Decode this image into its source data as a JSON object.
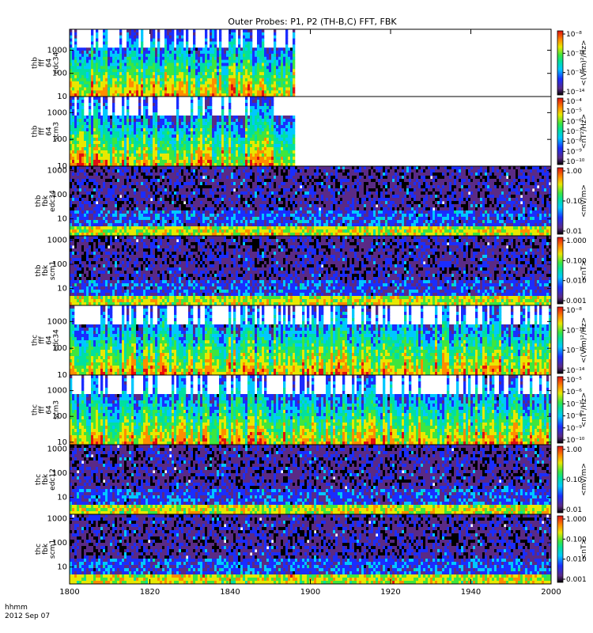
{
  "chart_data": {
    "type": "heatmap",
    "title": "Outer Probes: P1, P2 (TH-B,C) FFT, FBK",
    "xlabel": "hhmm",
    "date_label": "2012 Sep 07",
    "x_ticks": [
      "1800",
      "1820",
      "1840",
      "1900",
      "1920",
      "1940",
      "2000"
    ],
    "x_range": [
      "18:00",
      "20:00"
    ],
    "y_scale": "log",
    "colormap": [
      "#000000",
      "#5a2a86",
      "#1a2dff",
      "#00c8ff",
      "#00e0a0",
      "#3ee63e",
      "#e8e800",
      "#ff8c00",
      "#e01010",
      "#ff0000"
    ],
    "panels": [
      {
        "id": "thb-fff-e34",
        "ylabel_lines": [
          "thb",
          "fff",
          "64",
          "edc34"
        ],
        "y_ticks": [
          "10",
          "100",
          "1000"
        ],
        "y_range": [
          10,
          8000
        ],
        "cbar_label": "<(V/m)²/Hz>",
        "cbar_ticks": [
          "10⁻⁸",
          "10⁻¹⁰",
          "10⁻¹²",
          "10⁻¹⁴"
        ],
        "data_until": "18:56"
      },
      {
        "id": "thb-fff-scm3",
        "ylabel_lines": [
          "thb",
          "fff",
          "64",
          "scm3"
        ],
        "y_ticks": [
          "10",
          "100",
          "1000"
        ],
        "y_range": [
          10,
          4000
        ],
        "cbar_label": "<nT²/Hz>",
        "cbar_ticks": [
          "10⁻⁴",
          "10⁻⁵",
          "10⁻⁶",
          "10⁻⁷",
          "10⁻⁸",
          "10⁻⁹",
          "10⁻¹⁰"
        ],
        "data_until": "18:56"
      },
      {
        "id": "thb-fbk-e34",
        "ylabel_lines": [
          "thb",
          "fbk",
          "edc34"
        ],
        "y_ticks": [
          "10",
          "100",
          "1000"
        ],
        "y_range": [
          2,
          1500
        ],
        "cbar_label": "<mV/m>",
        "cbar_ticks": [
          "1.00",
          "0.10",
          "0.01"
        ],
        "data_until": "20:00"
      },
      {
        "id": "thb-fbk-scm1",
        "ylabel_lines": [
          "thb",
          "fbk",
          "scm1"
        ],
        "y_ticks": [
          "10",
          "100",
          "1000"
        ],
        "y_range": [
          2,
          1500
        ],
        "cbar_label": "<nT>",
        "cbar_ticks": [
          "1.000",
          "0.100",
          "0.010",
          "0.001"
        ],
        "data_until": "20:00"
      },
      {
        "id": "thc-fff-e34",
        "ylabel_lines": [
          "thc",
          "fff",
          "64",
          "edc34"
        ],
        "y_ticks": [
          "10",
          "100",
          "1000"
        ],
        "y_range": [
          10,
          4000
        ],
        "cbar_label": "<(V/m)²/Hz>",
        "cbar_ticks": [
          "10⁻⁸",
          "10⁻¹⁰",
          "10⁻¹²",
          "10⁻¹⁴"
        ],
        "data_until": "20:00"
      },
      {
        "id": "thc-fff-scm3",
        "ylabel_lines": [
          "thc",
          "fff",
          "64",
          "scm3"
        ],
        "y_ticks": [
          "10",
          "100",
          "1000"
        ],
        "y_range": [
          8,
          4000
        ],
        "cbar_label": "<nT²/Hz>",
        "cbar_ticks": [
          "10⁻⁵",
          "10⁻⁶",
          "10⁻⁷",
          "10⁻⁸",
          "10⁻⁹",
          "10⁻¹⁰"
        ],
        "data_until": "20:00"
      },
      {
        "id": "thc-fbk-e12",
        "ylabel_lines": [
          "thc",
          "fbk",
          "edc12"
        ],
        "y_ticks": [
          "10",
          "100",
          "1000"
        ],
        "y_range": [
          2,
          1500
        ],
        "cbar_label": "<mV/m>",
        "cbar_ticks": [
          "1.00",
          "0.10",
          "0.01"
        ],
        "data_until": "20:00"
      },
      {
        "id": "thc-fbk-scm1",
        "ylabel_lines": [
          "thc",
          "fbk",
          "scm1"
        ],
        "y_ticks": [
          "10",
          "100",
          "1000"
        ],
        "y_range": [
          2,
          1500
        ],
        "cbar_label": "<nT>",
        "cbar_ticks": [
          "1.000",
          "0.100",
          "0.010",
          "0.001"
        ],
        "data_until": "20:00"
      }
    ]
  }
}
